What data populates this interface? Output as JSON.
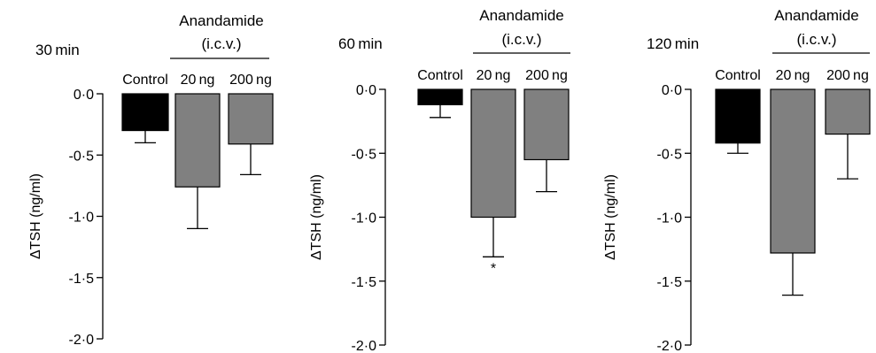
{
  "chart_data": [
    {
      "type": "bar",
      "panel_title": "30 min",
      "group_header": "Anandamide",
      "group_subheader": "(i.c.v.)",
      "categories": [
        "Control",
        "20 ng",
        "200 ng"
      ],
      "values": [
        -0.3,
        -0.76,
        -0.41
      ],
      "errors": [
        0.1,
        0.34,
        0.25
      ],
      "bar_colors": [
        "#000000",
        "#808080",
        "#808080"
      ],
      "ylabel": "ΔTSH (ng/ml)",
      "ylim": [
        -2.0,
        0.0
      ],
      "yticks": [
        "0·0",
        "-0·5",
        "-1·0",
        "-1·5",
        "-2·0"
      ],
      "ytick_values": [
        0,
        -0.5,
        -1.0,
        -1.5,
        -2.0
      ],
      "significance": [
        "",
        "",
        ""
      ]
    },
    {
      "type": "bar",
      "panel_title": "60 min",
      "group_header": "Anandamide",
      "group_subheader": "(i.c.v.)",
      "categories": [
        "Control",
        "20 ng",
        "200 ng"
      ],
      "values": [
        -0.12,
        -1.0,
        -0.55
      ],
      "errors": [
        0.1,
        0.31,
        0.25
      ],
      "bar_colors": [
        "#000000",
        "#808080",
        "#808080"
      ],
      "ylabel": "ΔTSH (ng/ml)",
      "ylim": [
        -2.0,
        0.0
      ],
      "yticks": [
        "0·0",
        "-0·5",
        "-1·0",
        "-1·5",
        "-2·0"
      ],
      "ytick_values": [
        0,
        -0.5,
        -1.0,
        -1.5,
        -2.0
      ],
      "significance": [
        "",
        "*",
        ""
      ]
    },
    {
      "type": "bar",
      "panel_title": "120 min",
      "group_header": "Anandamide",
      "group_subheader": "(i.c.v.)",
      "categories": [
        "Control",
        "20 ng",
        "200 ng"
      ],
      "values": [
        -0.42,
        -1.28,
        -0.35
      ],
      "errors": [
        0.08,
        0.33,
        0.35
      ],
      "bar_colors": [
        "#000000",
        "#808080",
        "#808080"
      ],
      "ylabel": "ΔTSH (ng/ml)",
      "ylim": [
        -2.0,
        0.0
      ],
      "yticks": [
        "0·0",
        "-0·5",
        "-1·0",
        "-1·5",
        "-2·0"
      ],
      "ytick_values": [
        0,
        -0.5,
        -1.0,
        -1.5,
        -2.0
      ],
      "significance": [
        "",
        "",
        ""
      ]
    }
  ]
}
